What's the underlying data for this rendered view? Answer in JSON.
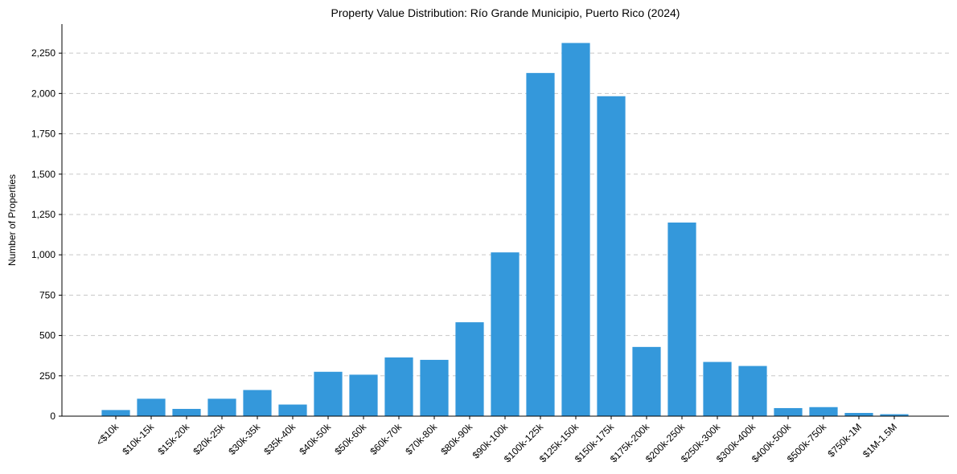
{
  "chart_data": {
    "type": "bar",
    "title": "Property Value Distribution: Río Grande Municipio, Puerto Rico (2024)",
    "xlabel": "",
    "ylabel": "Number of Properties",
    "categories": [
      "<$10k",
      "$10k-15k",
      "$15k-20k",
      "$20k-25k",
      "$30k-35k",
      "$35k-40k",
      "$40k-50k",
      "$50k-60k",
      "$60k-70k",
      "$70k-80k",
      "$80k-90k",
      "$90k-100k",
      "$100k-125k",
      "$125k-150k",
      "$150k-175k",
      "$175k-200k",
      "$200k-250k",
      "$250k-300k",
      "$300k-400k",
      "$400k-500k",
      "$500k-750k",
      "$750k-1M",
      "$1M-1.5M"
    ],
    "values": [
      38,
      108,
      45,
      108,
      162,
      72,
      275,
      257,
      364,
      349,
      582,
      1015,
      2127,
      2313,
      1983,
      429,
      1200,
      336,
      311,
      50,
      56,
      20,
      12
    ],
    "ylim": [
      0,
      2430
    ],
    "yticks": [
      0,
      250,
      500,
      750,
      1000,
      1250,
      1500,
      1750,
      2000,
      2250
    ],
    "ytick_labels": [
      "0",
      "250",
      "500",
      "750",
      "1,000",
      "1,250",
      "1,500",
      "1,750",
      "2,000",
      "2,250"
    ],
    "bar_color": "#3498db",
    "grid": "y-dashed",
    "legend": "none"
  }
}
